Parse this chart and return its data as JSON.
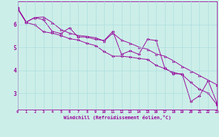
{
  "xlabel": "Windchill (Refroidissement éolien,°C)",
  "bg_color": "#cceee8",
  "line_color": "#990099",
  "grid_color": "#aadddd",
  "x_ticks": [
    0,
    1,
    2,
    3,
    4,
    5,
    6,
    7,
    8,
    9,
    10,
    11,
    12,
    13,
    14,
    15,
    16,
    17,
    18,
    19,
    20,
    21,
    22,
    23
  ],
  "y_ticks": [
    3,
    4,
    5,
    6
  ],
  "ylim": [
    2.3,
    7.0
  ],
  "xlim": [
    0,
    23
  ],
  "series": [
    [
      6.72,
      6.1,
      6.3,
      6.2,
      5.7,
      5.6,
      5.85,
      5.45,
      5.45,
      5.35,
      5.3,
      5.7,
      4.7,
      4.85,
      4.7,
      5.35,
      5.3,
      4.1,
      3.85,
      3.85,
      2.65,
      2.9,
      3.55,
      2.6
    ],
    [
      6.68,
      6.08,
      5.98,
      5.68,
      5.62,
      5.52,
      5.38,
      5.32,
      5.18,
      5.08,
      4.82,
      4.62,
      4.62,
      4.58,
      4.52,
      4.48,
      4.22,
      4.08,
      3.92,
      3.82,
      3.48,
      3.18,
      3.02,
      2.52
    ],
    [
      6.72,
      6.1,
      6.3,
      6.32,
      6.08,
      5.78,
      5.62,
      5.52,
      5.48,
      5.42,
      5.28,
      5.62,
      5.32,
      5.18,
      5.02,
      4.92,
      4.72,
      4.62,
      4.42,
      4.18,
      3.98,
      3.78,
      3.58,
      3.38
    ]
  ]
}
